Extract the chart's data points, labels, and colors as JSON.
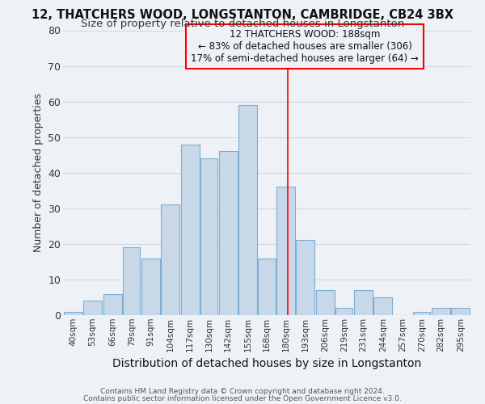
{
  "title1": "12, THATCHERS WOOD, LONGSTANTON, CAMBRIDGE, CB24 3BX",
  "title2": "Size of property relative to detached houses in Longstanton",
  "xlabel": "Distribution of detached houses by size in Longstanton",
  "ylabel": "Number of detached properties",
  "footnote1": "Contains HM Land Registry data © Crown copyright and database right 2024.",
  "footnote2": "Contains public sector information licensed under the Open Government Licence v3.0.",
  "bin_labels": [
    "40sqm",
    "53sqm",
    "66sqm",
    "79sqm",
    "91sqm",
    "104sqm",
    "117sqm",
    "130sqm",
    "142sqm",
    "155sqm",
    "168sqm",
    "180sqm",
    "193sqm",
    "206sqm",
    "219sqm",
    "231sqm",
    "244sqm",
    "257sqm",
    "270sqm",
    "282sqm",
    "295sqm"
  ],
  "bin_edges": [
    40,
    53,
    66,
    79,
    91,
    104,
    117,
    130,
    142,
    155,
    168,
    180,
    193,
    206,
    219,
    231,
    244,
    257,
    270,
    282,
    295,
    308
  ],
  "bar_heights": [
    1,
    4,
    6,
    19,
    16,
    31,
    48,
    44,
    46,
    59,
    16,
    36,
    21,
    7,
    2,
    7,
    5,
    0,
    1,
    2,
    2
  ],
  "bar_color": "#c8d8e8",
  "bar_edgecolor": "#7bafd4",
  "grid_color": "#d0d8e0",
  "bg_color": "#eef2f6",
  "vline_x": 188,
  "vline_color": "red",
  "annotation_title": "12 THATCHERS WOOD: 188sqm",
  "annotation_line1": "← 83% of detached houses are smaller (306)",
  "annotation_line2": "17% of semi-detached houses are larger (64) →",
  "annotation_box_color": "red",
  "ylim": [
    0,
    80
  ],
  "yticks": [
    0,
    10,
    20,
    30,
    40,
    50,
    60,
    70,
    80
  ]
}
